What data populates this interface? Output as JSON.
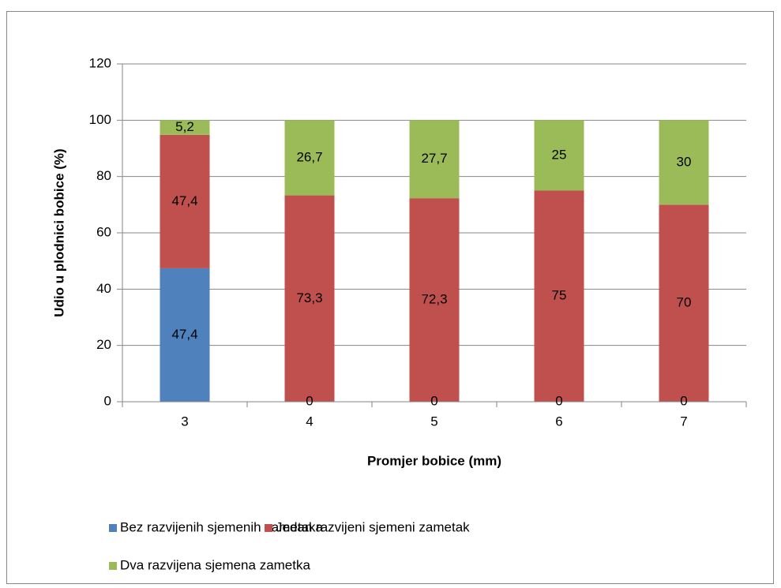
{
  "chart_data": {
    "type": "stacked_bar",
    "x_label": "Promjer bobice (mm)",
    "y_label": "Udio u plodnici bobice (%)",
    "categories": [
      "3",
      "4",
      "5",
      "6",
      "7"
    ],
    "series": [
      {
        "name": "Bez razvijenih sjemenih zametaka",
        "color": "#4f81bd",
        "values": [
          47.4,
          0,
          0,
          0,
          0
        ],
        "value_labels": [
          "47,4",
          "0",
          "0",
          "0",
          "0"
        ]
      },
      {
        "name": "Jedan razvijeni sjemeni zametak",
        "color": "#c0504d",
        "values": [
          47.4,
          73.3,
          72.3,
          75,
          70
        ],
        "value_labels": [
          "47,4",
          "73,3",
          "72,3",
          "75",
          "70"
        ]
      },
      {
        "name": "Dva razvijena sjemena zametka",
        "color": "#9bbb59",
        "values": [
          5.2,
          26.7,
          27.7,
          25,
          30
        ],
        "value_labels": [
          "5,2",
          "26,7",
          "27,7",
          "25",
          "30"
        ]
      }
    ],
    "ylim": [
      0,
      120
    ],
    "yticks": [
      0,
      20,
      40,
      60,
      80,
      100,
      120
    ],
    "grid": true,
    "legend": "bottom"
  }
}
